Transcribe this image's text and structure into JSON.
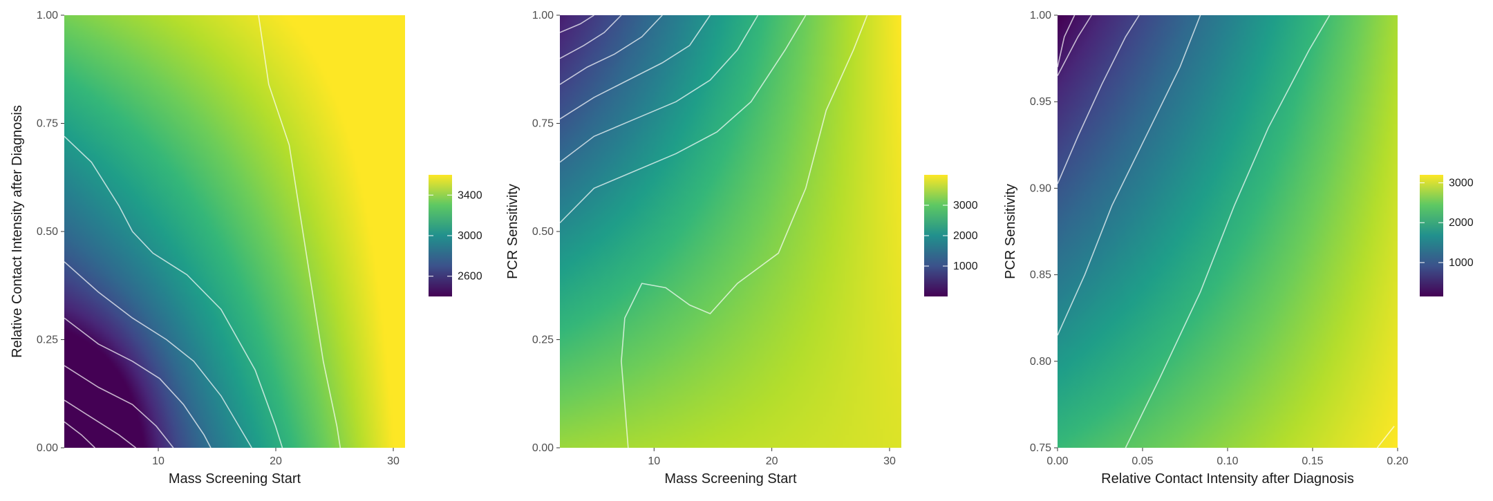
{
  "chart_data": [
    {
      "type": "heatmap",
      "xlabel": "Mass Screening Start",
      "ylabel": "Relative Contact Intensity after Diagnosis",
      "xlim": [
        2,
        31
      ],
      "ylim": [
        0,
        1
      ],
      "x_ticks": [
        "10",
        "20",
        "30"
      ],
      "x_tick_values": [
        10,
        20,
        30
      ],
      "y_ticks": [
        "0.00",
        "0.25",
        "0.50",
        "0.75",
        "1.00"
      ],
      "y_tick_values": [
        0,
        0.25,
        0.5,
        0.75,
        1
      ],
      "colorscale": "viridis",
      "colorbar_range": [
        2400,
        3600
      ],
      "colorbar_ticks": [
        "2600",
        "3000",
        "3400"
      ],
      "colorbar_tick_values": [
        2600,
        3000,
        3400
      ],
      "corner_values": {
        "x_min_y_min": 2300,
        "x_max_y_min": 3640,
        "x_min_y_max": 3350,
        "x_max_y_max": 3610
      },
      "contour_lines": true
    },
    {
      "type": "heatmap",
      "xlabel": "Mass Screening Start",
      "ylabel": "PCR Sensitivity",
      "xlim": [
        2,
        31
      ],
      "ylim": [
        0,
        1
      ],
      "x_ticks": [
        "10",
        "20",
        "30"
      ],
      "x_tick_values": [
        10,
        20,
        30
      ],
      "y_ticks": [
        "0.00",
        "0.25",
        "0.50",
        "0.75",
        "1.00"
      ],
      "y_tick_values": [
        0,
        0.25,
        0.5,
        0.75,
        1
      ],
      "colorscale": "viridis",
      "colorbar_range": [
        0,
        4000
      ],
      "colorbar_ticks": [
        "1000",
        "2000",
        "3000"
      ],
      "colorbar_tick_values": [
        1000,
        2000,
        3000
      ],
      "corner_values": {
        "x_min_y_min": 3400,
        "x_max_y_min": 3800,
        "x_min_y_max": 150,
        "x_max_y_max": 4000
      },
      "contour_lines": true
    },
    {
      "type": "heatmap",
      "xlabel": "Relative Contact Intensity after Diagnosis",
      "ylabel": "PCR Sensitivity",
      "xlim": [
        0,
        0.2
      ],
      "ylim": [
        0.75,
        1
      ],
      "x_ticks": [
        "0.00",
        "0.05",
        "0.10",
        "0.15",
        "0.20"
      ],
      "x_tick_values": [
        0,
        0.05,
        0.1,
        0.15,
        0.2
      ],
      "y_ticks": [
        "0.75",
        "0.80",
        "0.85",
        "0.90",
        "0.95",
        "1.00"
      ],
      "y_tick_values": [
        0.75,
        0.8,
        0.85,
        0.9,
        0.95,
        1
      ],
      "colorscale": "viridis",
      "colorbar_range": [
        150,
        3200
      ],
      "colorbar_ticks": [
        "1000",
        "2000",
        "3000"
      ],
      "colorbar_tick_values": [
        1000,
        2000,
        3000
      ],
      "corner_values": {
        "x_min_y_min": 2200,
        "x_max_y_min": 3200,
        "x_min_y_max": 150,
        "x_max_y_max": 2800
      },
      "contour_lines": true
    }
  ]
}
